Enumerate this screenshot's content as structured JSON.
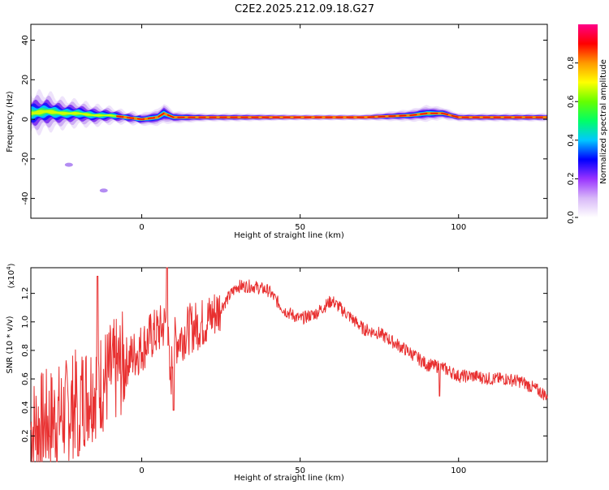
{
  "title": "C2E2.2025.212.09.18.G27",
  "chart_data": [
    {
      "type": "heatmap",
      "xlabel": "Height of straight line (km)",
      "ylabel": "Frequency (Hz)",
      "xlim": [
        -35,
        128
      ],
      "ylim": [
        -50,
        48
      ],
      "xticks": [
        0,
        50,
        100
      ],
      "yticks": [
        40,
        20,
        0,
        -20,
        -40
      ],
      "colorbar": {
        "label": "Normalized spectral amplitude",
        "range": [
          0,
          1
        ],
        "ticks": [
          "0.0",
          "0.2",
          "0.4",
          "0.6",
          "0.8"
        ],
        "colors": [
          "#ffffff",
          "#d8b8f8",
          "#9933ff",
          "#0000ff",
          "#00c8ff",
          "#00ff66",
          "#66ff00",
          "#ffff00",
          "#ff9900",
          "#ff0000",
          "#ff0088"
        ]
      },
      "dominant_frequency_trace": {
        "x": [
          -35,
          -30,
          -25,
          -20,
          -15,
          -10,
          -5,
          0,
          5,
          7,
          10,
          20,
          30,
          50,
          70,
          85,
          90,
          95,
          100,
          128
        ],
        "y": [
          3,
          4,
          3,
          3,
          2,
          2,
          1,
          0,
          1,
          3,
          1,
          1,
          1,
          1,
          1,
          2,
          3,
          3,
          1,
          1
        ],
        "spread_hz": [
          10,
          9,
          7,
          6,
          5,
          4,
          3,
          3,
          4,
          5,
          3,
          2,
          2,
          1.5,
          1.5,
          3,
          4,
          3,
          2,
          2
        ]
      },
      "isolated_patches": [
        {
          "x": -23,
          "y": -23
        },
        {
          "x": -12,
          "y": -36
        }
      ]
    },
    {
      "type": "line",
      "xlabel": "Height of straight line (km)",
      "ylabel": "SNR (10 * v/v)",
      "y_multiplier_label": "(x10",
      "y_multiplier_exponent": "4",
      "y_multiplier_close": ")",
      "xlim": [
        -35,
        128
      ],
      "ylim": [
        0.02,
        1.38
      ],
      "xticks": [
        0,
        50,
        100
      ],
      "yticks": [
        "0.2",
        "0.4",
        "0.6",
        "0.8",
        "1.0",
        "1.2"
      ],
      "series": [
        {
          "color": "#e83030",
          "envelope": {
            "x": [
              -35,
              -30,
              -25,
              -20,
              -15,
              -10,
              -5,
              0,
              3,
              6,
              8,
              9,
              10,
              15,
              20,
              25,
              30,
              35,
              40,
              45,
              50,
              55,
              60,
              65,
              70,
              75,
              80,
              85,
              90,
              95,
              100,
              105,
              110,
              115,
              120,
              125,
              128
            ],
            "y": [
              0.25,
              0.3,
              0.35,
              0.45,
              0.55,
              0.62,
              0.72,
              0.82,
              0.9,
              0.95,
              1.0,
              0.55,
              0.85,
              0.95,
              1.0,
              1.1,
              1.25,
              1.25,
              1.22,
              1.08,
              1.02,
              1.06,
              1.15,
              1.05,
              0.95,
              0.92,
              0.85,
              0.78,
              0.7,
              0.68,
              0.62,
              0.62,
              0.6,
              0.6,
              0.58,
              0.52,
              0.48
            ]
          },
          "spikes": [
            {
              "x": -14,
              "y": 1.32
            },
            {
              "x": 8,
              "y": 1.38
            },
            {
              "x": 10,
              "y": 0.38
            },
            {
              "x": -20,
              "y": 0.06
            },
            {
              "x": 94,
              "y": 0.48
            }
          ]
        }
      ]
    }
  ]
}
